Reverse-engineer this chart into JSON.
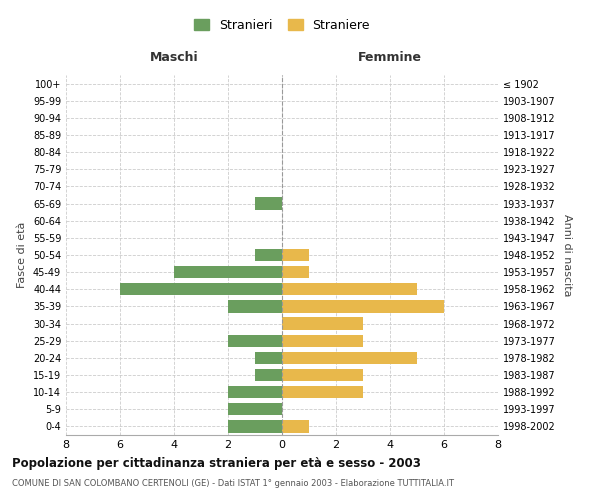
{
  "age_groups": [
    "0-4",
    "5-9",
    "10-14",
    "15-19",
    "20-24",
    "25-29",
    "30-34",
    "35-39",
    "40-44",
    "45-49",
    "50-54",
    "55-59",
    "60-64",
    "65-69",
    "70-74",
    "75-79",
    "80-84",
    "85-89",
    "90-94",
    "95-99",
    "100+"
  ],
  "birth_years": [
    "1998-2002",
    "1993-1997",
    "1988-1992",
    "1983-1987",
    "1978-1982",
    "1973-1977",
    "1968-1972",
    "1963-1967",
    "1958-1962",
    "1953-1957",
    "1948-1952",
    "1943-1947",
    "1938-1942",
    "1933-1937",
    "1928-1932",
    "1923-1927",
    "1918-1922",
    "1913-1917",
    "1908-1912",
    "1903-1907",
    "≤ 1902"
  ],
  "maschi": [
    2,
    2,
    2,
    1,
    1,
    2,
    0,
    2,
    6,
    4,
    1,
    0,
    0,
    1,
    0,
    0,
    0,
    0,
    0,
    0,
    0
  ],
  "femmine": [
    1,
    0,
    3,
    3,
    5,
    3,
    3,
    6,
    5,
    1,
    1,
    0,
    0,
    0,
    0,
    0,
    0,
    0,
    0,
    0,
    0
  ],
  "male_color": "#6a9e5e",
  "female_color": "#e8b84b",
  "title": "Popolazione per cittadinanza straniera per età e sesso - 2003",
  "subtitle": "COMUNE DI SAN COLOMBANO CERTENOLI (GE) - Dati ISTAT 1° gennaio 2003 - Elaborazione TUTTITALIA.IT",
  "xlabel_left": "Maschi",
  "xlabel_right": "Femmine",
  "ylabel_left": "Fasce di età",
  "ylabel_right": "Anni di nascita",
  "legend_male": "Stranieri",
  "legend_female": "Straniere",
  "xlim": 8,
  "background_color": "#ffffff",
  "grid_color": "#cccccc"
}
